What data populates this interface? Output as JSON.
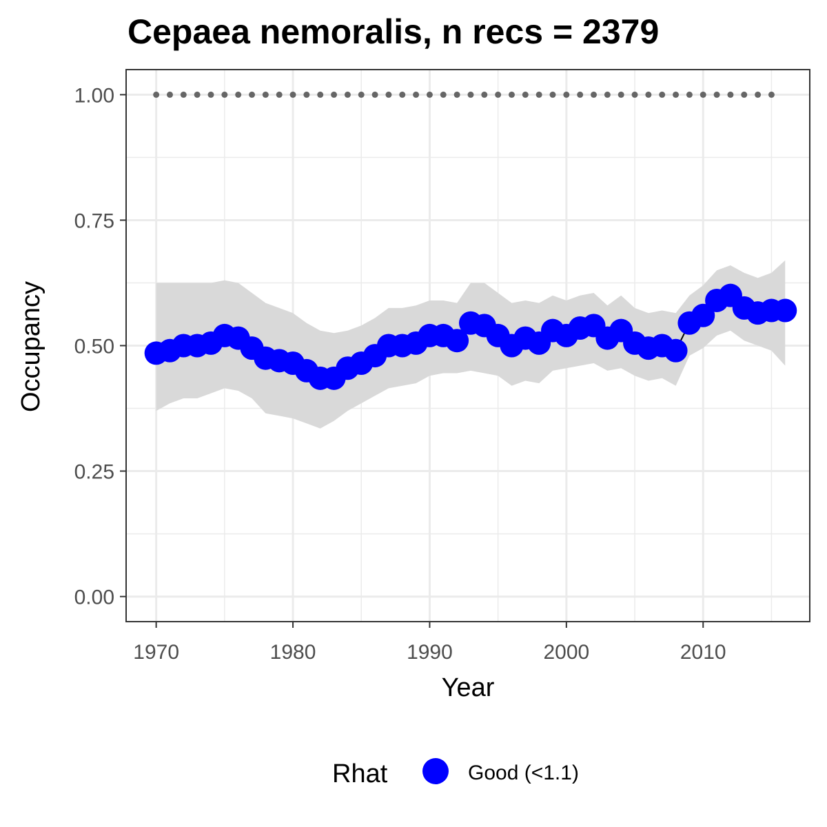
{
  "chart_data": {
    "type": "line",
    "title": "Cepaea nemoralis, n recs = 2379",
    "xlabel": "Year",
    "ylabel": "Occupancy",
    "xlim": [
      1967.8,
      2017.8
    ],
    "ylim": [
      -0.05,
      1.05
    ],
    "x_ticks": [
      1970,
      1980,
      1990,
      2000,
      2010
    ],
    "x_tick_labels": [
      "1970",
      "1980",
      "1990",
      "2000",
      "2010"
    ],
    "y_ticks": [
      0,
      0.25,
      0.5,
      0.75,
      1.0
    ],
    "y_tick_labels": [
      "0.00",
      "0.25",
      "0.50",
      "0.75",
      "1.00"
    ],
    "grid": true,
    "legend": {
      "title": "Rhat",
      "placement": "bottom",
      "entries": [
        {
          "label": "Good (<1.1)",
          "color": "#0000ff"
        }
      ]
    },
    "series": [
      {
        "name": "Good (<1.1)",
        "color": "#0000ff",
        "x": [
          1970,
          1971,
          1972,
          1973,
          1974,
          1975,
          1976,
          1977,
          1978,
          1979,
          1980,
          1981,
          1982,
          1983,
          1984,
          1985,
          1986,
          1987,
          1988,
          1989,
          1990,
          1991,
          1992,
          1993,
          1994,
          1995,
          1996,
          1997,
          1998,
          1999,
          2000,
          2001,
          2002,
          2003,
          2004,
          2005,
          2006,
          2007,
          2008,
          2009,
          2010,
          2011,
          2012,
          2013,
          2014,
          2015,
          2016
        ],
        "y": [
          0.485,
          0.49,
          0.5,
          0.5,
          0.505,
          0.52,
          0.515,
          0.495,
          0.475,
          0.47,
          0.465,
          0.45,
          0.435,
          0.435,
          0.455,
          0.465,
          0.48,
          0.5,
          0.5,
          0.505,
          0.52,
          0.52,
          0.51,
          0.545,
          0.54,
          0.52,
          0.5,
          0.515,
          0.505,
          0.53,
          0.52,
          0.535,
          0.54,
          0.515,
          0.53,
          0.505,
          0.495,
          0.5,
          0.49,
          0.545,
          0.56,
          0.59,
          0.6,
          0.575,
          0.565,
          0.57,
          0.57
        ],
        "lower": [
          0.37,
          0.385,
          0.395,
          0.395,
          0.405,
          0.415,
          0.41,
          0.395,
          0.365,
          0.36,
          0.355,
          0.345,
          0.335,
          0.35,
          0.37,
          0.385,
          0.4,
          0.415,
          0.42,
          0.425,
          0.44,
          0.445,
          0.445,
          0.45,
          0.445,
          0.44,
          0.42,
          0.43,
          0.425,
          0.45,
          0.455,
          0.46,
          0.465,
          0.45,
          0.455,
          0.44,
          0.43,
          0.435,
          0.42,
          0.48,
          0.495,
          0.52,
          0.53,
          0.51,
          0.5,
          0.49,
          0.46
        ],
        "upper": [
          0.625,
          0.625,
          0.625,
          0.625,
          0.625,
          0.63,
          0.625,
          0.605,
          0.585,
          0.575,
          0.565,
          0.545,
          0.53,
          0.525,
          0.53,
          0.54,
          0.555,
          0.575,
          0.575,
          0.58,
          0.59,
          0.59,
          0.585,
          0.625,
          0.625,
          0.605,
          0.585,
          0.59,
          0.585,
          0.6,
          0.59,
          0.6,
          0.605,
          0.58,
          0.6,
          0.575,
          0.565,
          0.57,
          0.565,
          0.6,
          0.62,
          0.65,
          0.66,
          0.645,
          0.635,
          0.645,
          0.67
        ]
      },
      {
        "name": "",
        "color": "#666666",
        "x": [
          1970,
          1971,
          1972,
          1973,
          1974,
          1975,
          1976,
          1977,
          1978,
          1979,
          1980,
          1981,
          1982,
          1983,
          1984,
          1985,
          1986,
          1987,
          1988,
          1989,
          1990,
          1991,
          1992,
          1993,
          1994,
          1995,
          1996,
          1997,
          1998,
          1999,
          2000,
          2001,
          2002,
          2003,
          2004,
          2005,
          2006,
          2007,
          2008,
          2009,
          2010,
          2011,
          2012,
          2013,
          2014,
          2015
        ],
        "y": [
          1,
          1,
          1,
          1,
          1,
          1,
          1,
          1,
          1,
          1,
          1,
          1,
          1,
          1,
          1,
          1,
          1,
          1,
          1,
          1,
          1,
          1,
          1,
          1,
          1,
          1,
          1,
          1,
          1,
          1,
          1,
          1,
          1,
          1,
          1,
          1,
          1,
          1,
          1,
          1,
          1,
          1,
          1,
          1,
          1,
          1
        ]
      }
    ]
  }
}
